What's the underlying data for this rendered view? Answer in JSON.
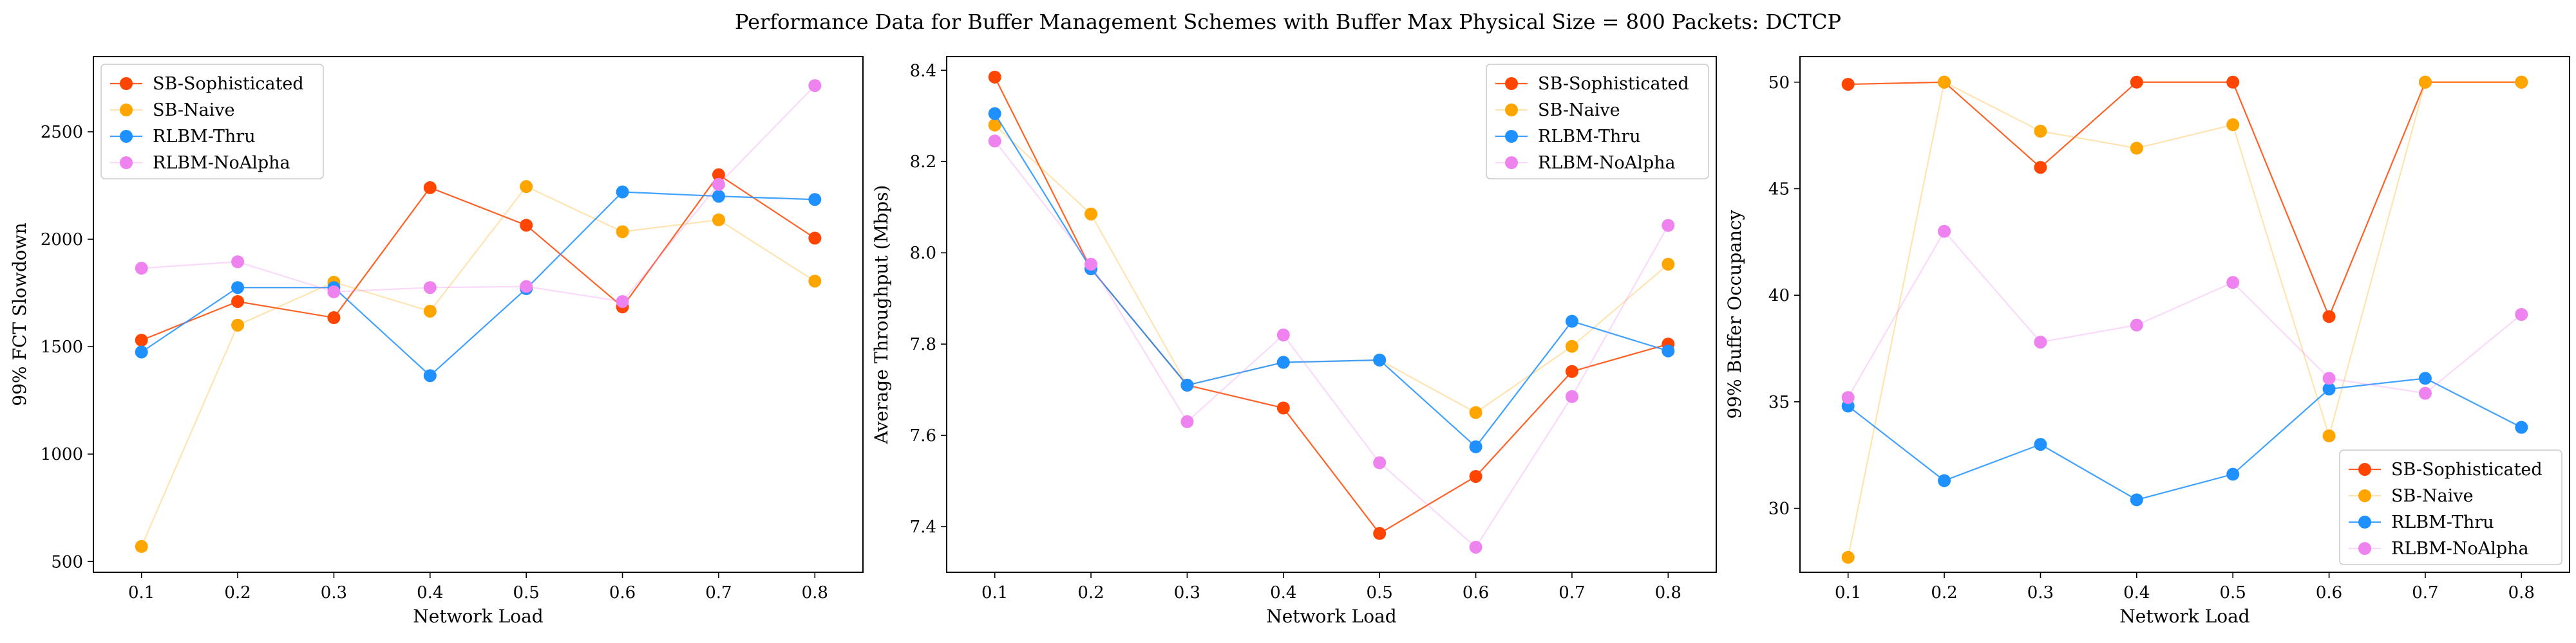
{
  "figure": {
    "suptitle": "Performance Data for Buffer Management Schemes with Buffer Max Physical Size = 800 Packets: DCTCP"
  },
  "series_styles": [
    {
      "name": "SB-Sophisticated",
      "color": "#ff4500",
      "line_opacity": 0.85
    },
    {
      "name": "SB-Naive",
      "color": "#ffa500",
      "line_opacity": 0.3
    },
    {
      "name": "RLBM-Thru",
      "color": "#1e90ff",
      "line_opacity": 0.85
    },
    {
      "name": "RLBM-NoAlpha",
      "color": "#ee82ee",
      "line_opacity": 0.3
    }
  ],
  "chart_data": [
    {
      "type": "line",
      "title": "",
      "xlabel": "Network Load",
      "ylabel": "99% FCT Slowdown",
      "x": [
        0.1,
        0.2,
        0.3,
        0.4,
        0.5,
        0.6,
        0.7,
        0.8
      ],
      "xticks": [
        "0.1",
        "0.2",
        "0.3",
        "0.4",
        "0.5",
        "0.6",
        "0.7",
        "0.8"
      ],
      "xlim": [
        0.05,
        0.85
      ],
      "ylim": [
        450,
        2850
      ],
      "yticks": [
        500,
        1000,
        1500,
        2000,
        2500
      ],
      "ytick_labels": [
        "500",
        "1000",
        "1500",
        "2000",
        "2500"
      ],
      "legend_loc": "top-left",
      "series": [
        {
          "name": "SB-Sophisticated",
          "values": [
            1530,
            1710,
            1635,
            2240,
            2065,
            1685,
            2300,
            2005
          ]
        },
        {
          "name": "SB-Naive",
          "values": [
            570,
            1600,
            1800,
            1665,
            2245,
            2035,
            2090,
            1805
          ]
        },
        {
          "name": "RLBM-Thru",
          "values": [
            1475,
            1775,
            1775,
            1365,
            1770,
            2220,
            2200,
            2185
          ]
        },
        {
          "name": "RLBM-NoAlpha",
          "values": [
            1865,
            1895,
            1755,
            1775,
            1780,
            1710,
            2255,
            2715
          ]
        }
      ]
    },
    {
      "type": "line",
      "title": "",
      "xlabel": "Network Load",
      "ylabel": "Average Throughput (Mbps)",
      "x": [
        0.1,
        0.2,
        0.3,
        0.4,
        0.5,
        0.6,
        0.7,
        0.8
      ],
      "xticks": [
        "0.1",
        "0.2",
        "0.3",
        "0.4",
        "0.5",
        "0.6",
        "0.7",
        "0.8"
      ],
      "xlim": [
        0.05,
        0.85
      ],
      "ylim": [
        7.3,
        8.43
      ],
      "yticks": [
        7.4,
        7.6,
        7.8,
        8.0,
        8.2,
        8.4
      ],
      "ytick_labels": [
        "7.4",
        "7.6",
        "7.8",
        "8.0",
        "8.2",
        "8.4"
      ],
      "legend_loc": "top-right",
      "series": [
        {
          "name": "SB-Sophisticated",
          "values": [
            8.385,
            7.965,
            7.71,
            7.66,
            7.385,
            7.51,
            7.74,
            7.8
          ]
        },
        {
          "name": "SB-Naive",
          "values": [
            8.28,
            8.085,
            7.71,
            7.76,
            7.765,
            7.65,
            7.795,
            7.975
          ]
        },
        {
          "name": "RLBM-Thru",
          "values": [
            8.305,
            7.965,
            7.71,
            7.76,
            7.765,
            7.575,
            7.85,
            7.785
          ]
        },
        {
          "name": "RLBM-NoAlpha",
          "values": [
            8.245,
            7.975,
            7.63,
            7.82,
            7.54,
            7.355,
            7.685,
            8.06
          ]
        }
      ]
    },
    {
      "type": "line",
      "title": "",
      "xlabel": "Network Load",
      "ylabel": "99% Buffer Occupancy",
      "x": [
        0.1,
        0.2,
        0.3,
        0.4,
        0.5,
        0.6,
        0.7,
        0.8
      ],
      "xticks": [
        "0.1",
        "0.2",
        "0.3",
        "0.4",
        "0.5",
        "0.6",
        "0.7",
        "0.8"
      ],
      "xlim": [
        0.05,
        0.85
      ],
      "ylim": [
        27.0,
        51.2
      ],
      "yticks": [
        30,
        35,
        40,
        45,
        50
      ],
      "ytick_labels": [
        "30",
        "35",
        "40",
        "45",
        "50"
      ],
      "legend_loc": "bottom-right",
      "series": [
        {
          "name": "SB-Sophisticated",
          "values": [
            49.9,
            50.0,
            46.0,
            50.0,
            50.0,
            39.0,
            50.0,
            50.0
          ]
        },
        {
          "name": "SB-Naive",
          "values": [
            27.7,
            50.0,
            47.7,
            46.9,
            48.0,
            33.4,
            50.0,
            50.0
          ]
        },
        {
          "name": "RLBM-Thru",
          "values": [
            34.8,
            31.3,
            33.0,
            30.4,
            31.6,
            35.6,
            36.1,
            33.8
          ]
        },
        {
          "name": "RLBM-NoAlpha",
          "values": [
            35.2,
            43.0,
            37.8,
            38.6,
            40.6,
            36.1,
            35.4,
            39.1
          ]
        }
      ]
    }
  ]
}
